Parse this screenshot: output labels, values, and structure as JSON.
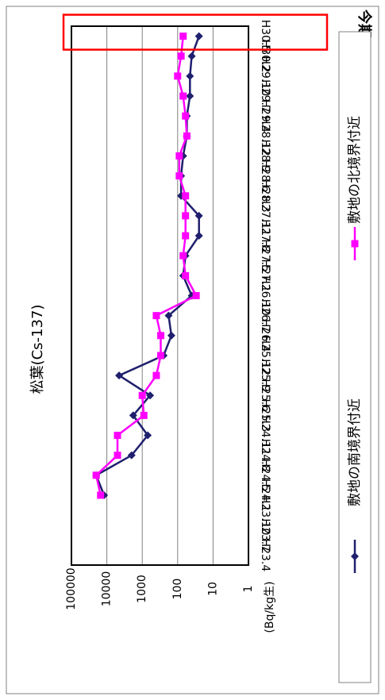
{
  "chart_data": {
    "type": "line",
    "orientation": "rotated-90-clockwise",
    "title": "松葉(Cs-137)",
    "unit_label": "(Bq/kg生)",
    "y_scale": "log",
    "ylim": [
      1,
      100000
    ],
    "y_ticks": [
      "1",
      "10",
      "100",
      "1000",
      "10000",
      "100000"
    ],
    "grid": true,
    "legend_position": "bottom",
    "categories": [
      "H23.4",
      "H23.7",
      "H23.10",
      "H24.1",
      "H24.5",
      "H24.8",
      "H24.11",
      "H25.3",
      "H25.6",
      "H25.9",
      "H25.12",
      "H26.4",
      "H26.7",
      "H26.10",
      "H27.1",
      "H27.5",
      "H27.8",
      "H27.11",
      "H28.3",
      "H28.6",
      "H28.9",
      "H28.12",
      "H29.4",
      "H29.7",
      "H29.10",
      "H30.2",
      "H30.5"
    ],
    "series": [
      {
        "name": "敷地の南境界付近",
        "color": "#1f1f6e",
        "marker": "diamond",
        "values": [
          null,
          null,
          null,
          12000,
          20000,
          2000,
          700,
          1800,
          600,
          4500,
          250,
          150,
          180,
          40,
          70,
          60,
          25,
          25,
          80,
          80,
          70,
          55,
          55,
          45,
          45,
          40,
          25
        ]
      },
      {
        "name": "敷地の北境界付近",
        "color": "#ff00ff",
        "marker": "square",
        "values": [
          null,
          null,
          null,
          15000,
          20000,
          5000,
          5000,
          900,
          1000,
          400,
          300,
          300,
          400,
          30,
          60,
          70,
          60,
          60,
          60,
          90,
          90,
          55,
          60,
          70,
          100,
          80,
          70
        ]
      }
    ],
    "annotation": {
      "label": "今期",
      "category": "H30.5",
      "color": "#ff0000"
    }
  }
}
